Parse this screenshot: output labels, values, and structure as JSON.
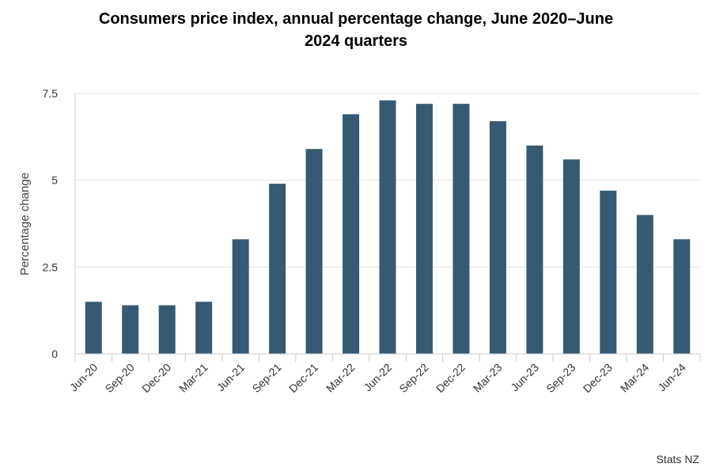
{
  "chart_data": {
    "type": "bar",
    "title_line1": "Consumers price index, annual percentage change, June 2020–June",
    "title_line2": "2024 quarters",
    "ylabel": "Percentage change",
    "xlabel": "",
    "ylim": [
      0,
      7.5
    ],
    "yticks": [
      "0",
      "2.5",
      "5",
      "7.5"
    ],
    "ytick_values": [
      0,
      2.5,
      5,
      7.5
    ],
    "categories": [
      "Jun-20",
      "Sep-20",
      "Dec-20",
      "Mar-21",
      "Jun-21",
      "Sep-21",
      "Dec-21",
      "Mar-22",
      "Jun-22",
      "Sep-22",
      "Dec-22",
      "Mar-23",
      "Jun-23",
      "Sep-23",
      "Dec-23",
      "Mar-24",
      "Jun-24"
    ],
    "values": [
      1.5,
      1.4,
      1.4,
      1.5,
      3.3,
      4.9,
      5.9,
      6.9,
      7.3,
      7.2,
      7.2,
      6.7,
      6.0,
      5.6,
      4.7,
      4.0,
      3.3
    ],
    "bar_color": "#365a72",
    "grid": true,
    "legend": "none"
  },
  "credit": "Stats NZ"
}
